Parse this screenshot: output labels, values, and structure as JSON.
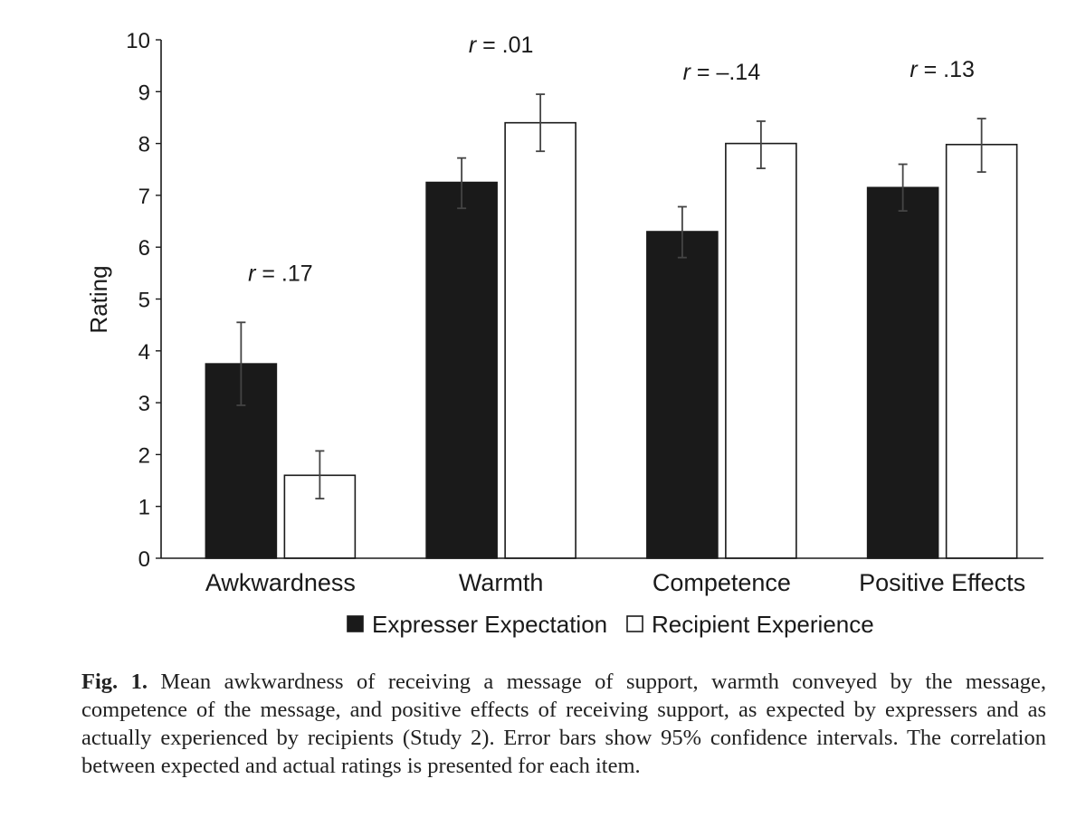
{
  "chart_data": {
    "type": "bar",
    "ylabel": "Rating",
    "ylim": [
      0,
      10
    ],
    "yticks": [
      0,
      1,
      2,
      3,
      4,
      5,
      6,
      7,
      8,
      9,
      10
    ],
    "categories": [
      "Awkwardness",
      "Warmth",
      "Competence",
      "Positive Effects"
    ],
    "series": [
      {
        "name": "Expresser Expectation",
        "color": "#1a1a1a",
        "values": [
          3.75,
          7.25,
          6.3,
          7.15
        ],
        "ci_low": [
          2.95,
          6.75,
          5.8,
          6.7
        ],
        "ci_high": [
          4.55,
          7.72,
          6.78,
          7.6
        ]
      },
      {
        "name": "Recipient Experience",
        "color": "#ffffff",
        "values": [
          1.6,
          8.4,
          8.0,
          7.98
        ],
        "ci_low": [
          1.15,
          7.85,
          7.52,
          7.45
        ],
        "ci_high": [
          2.07,
          8.95,
          8.43,
          8.48
        ]
      }
    ],
    "annotations": [
      {
        "category": "Awkwardness",
        "prefix": "r",
        "text": " = .17"
      },
      {
        "category": "Warmth",
        "prefix": "r",
        "text": " = .01"
      },
      {
        "category": "Competence",
        "prefix": "r",
        "text": " = –.14"
      },
      {
        "category": "Positive Effects",
        "prefix": "r",
        "text": " = .13"
      }
    ],
    "legend_position": "bottom"
  },
  "caption": {
    "label": "Fig. 1.",
    "text": " Mean awkwardness of receiving a message of support, warmth conveyed by the message, competence of the message, and positive effects of receiving support, as expected by expressers and as actually experienced by recipients (Study 2). Error bars show 95% confidence intervals. The correlation between expected and actual ratings is presented for each item."
  }
}
